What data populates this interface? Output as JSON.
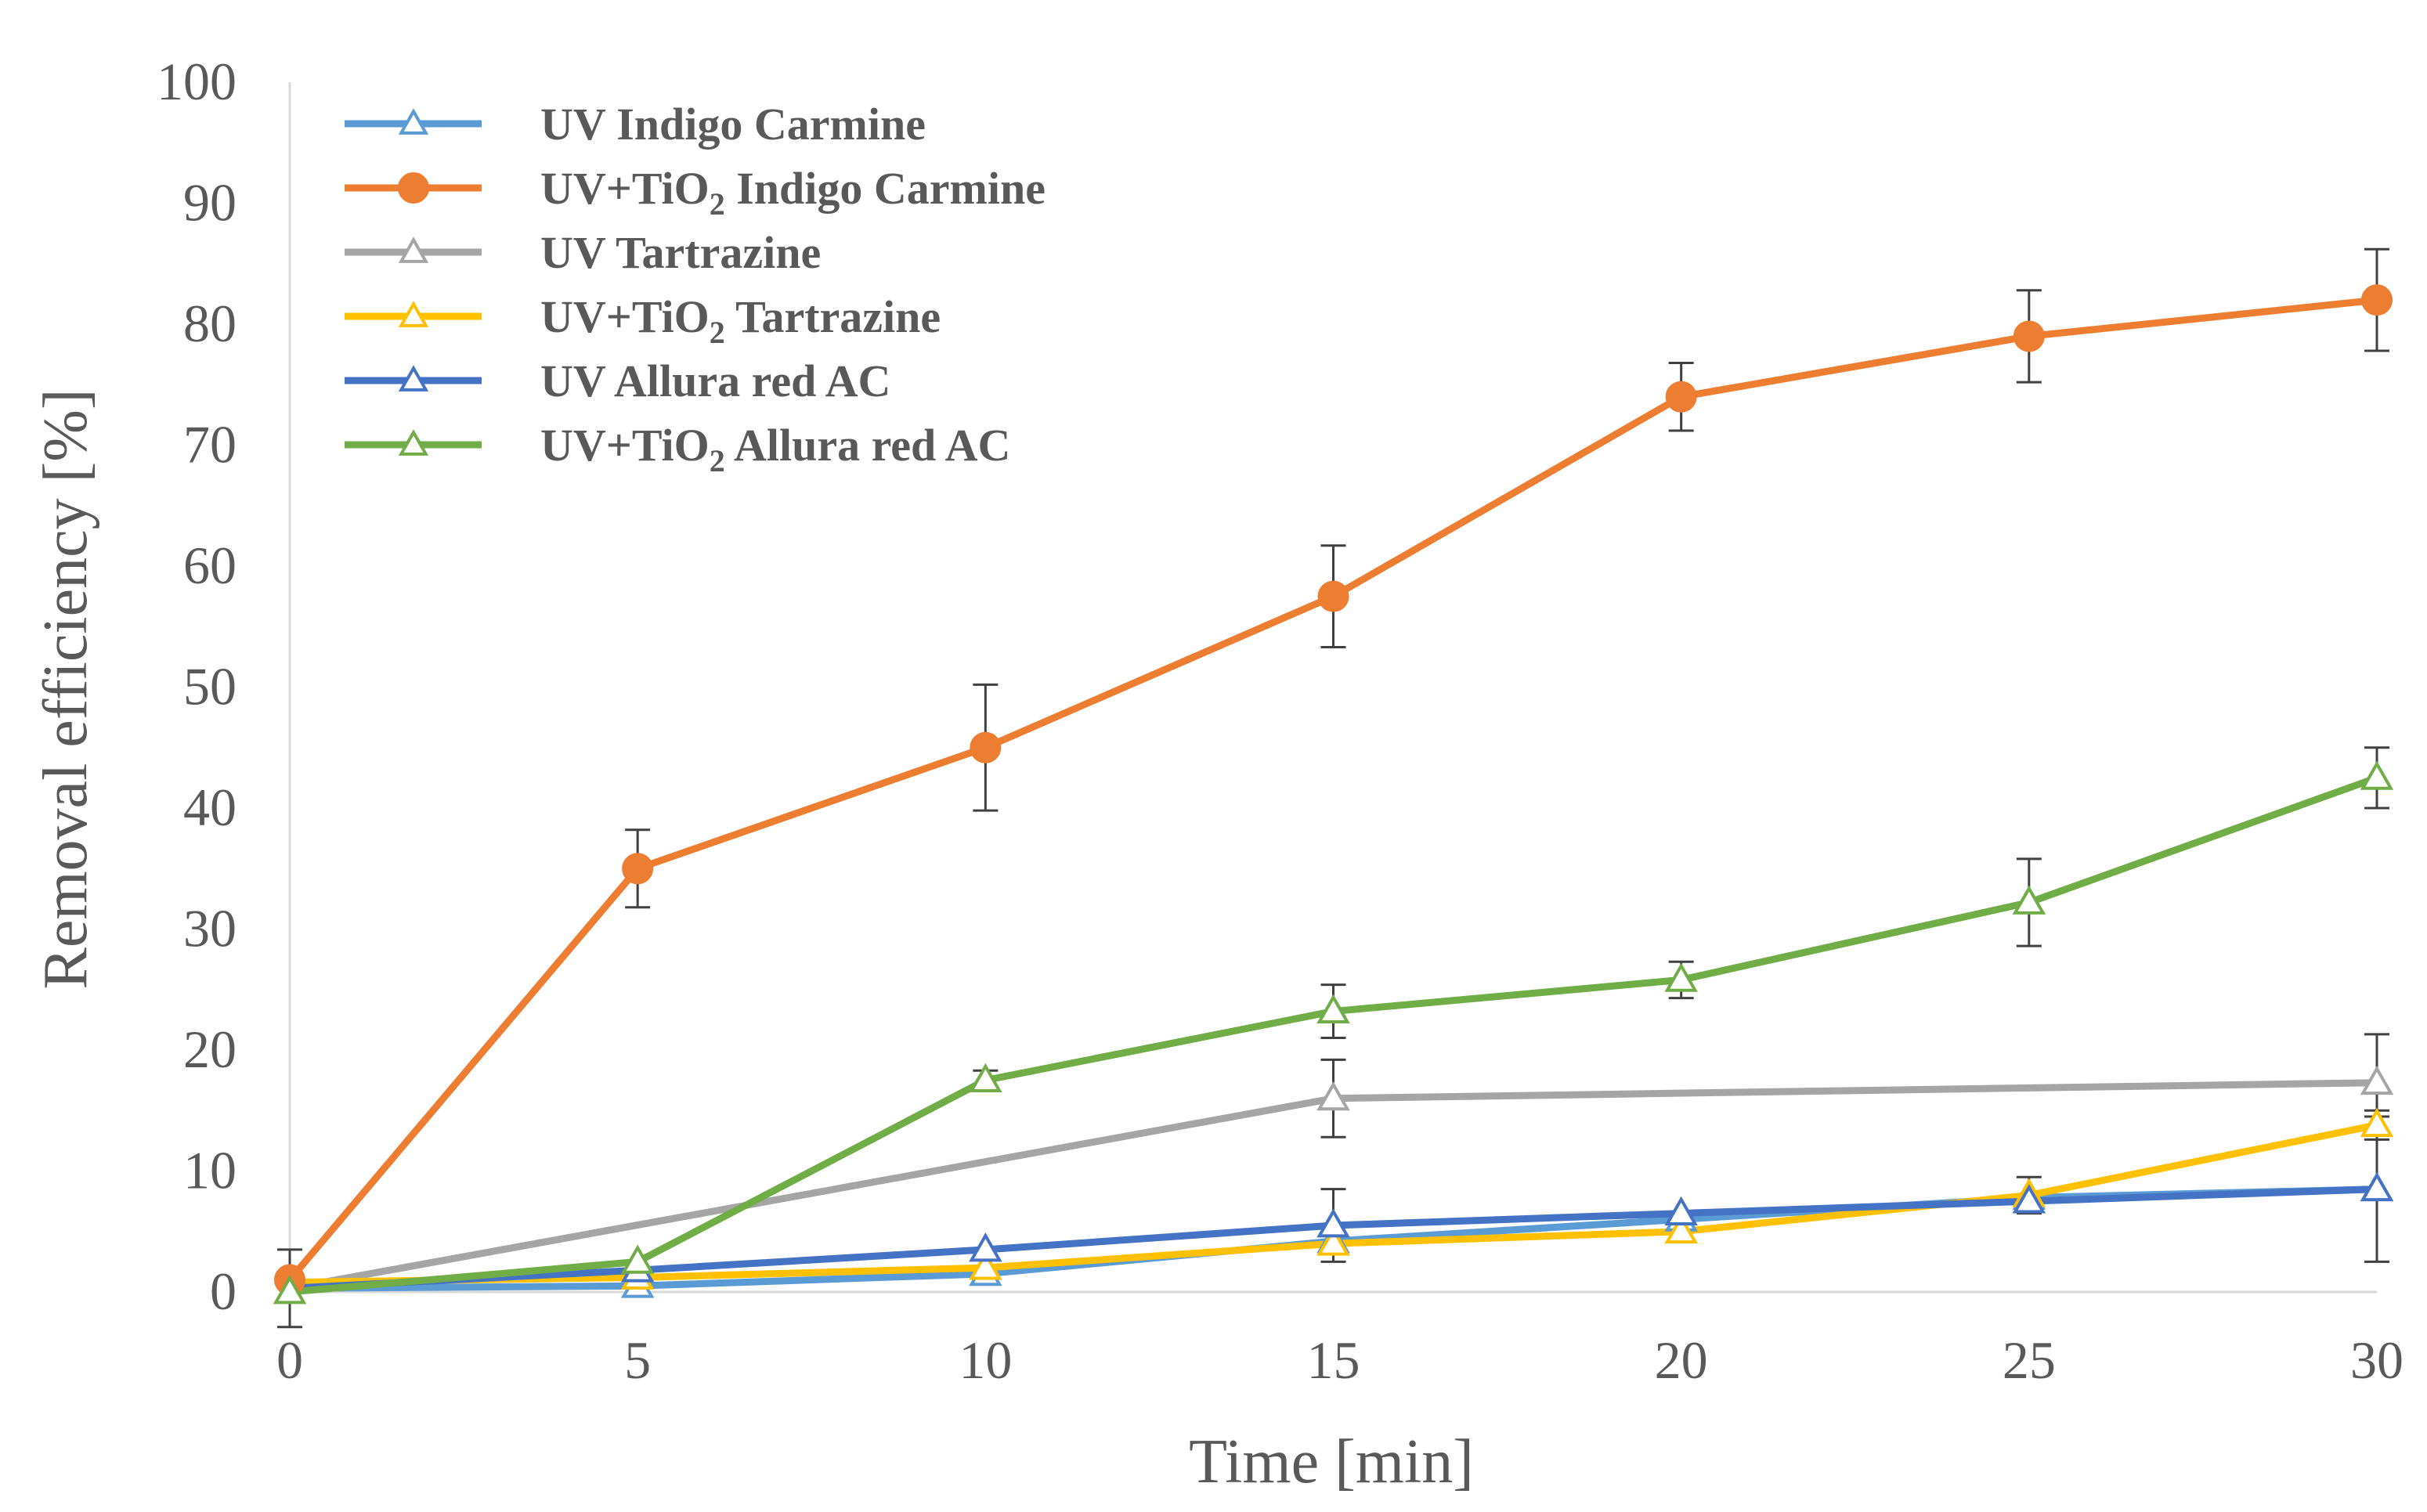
{
  "chart_data": {
    "type": "line",
    "title": "",
    "xlabel": "Time [min]",
    "ylabel": "Removal efficiency [%]",
    "xlim": [
      0,
      30
    ],
    "ylim": [
      0,
      100
    ],
    "x_ticks": [
      0,
      5,
      10,
      15,
      20,
      25,
      30
    ],
    "y_ticks": [
      0,
      10,
      20,
      30,
      40,
      50,
      60,
      70,
      80,
      90,
      100
    ],
    "x_tick_labels": [
      "0",
      "5",
      "10",
      "15",
      "20",
      "25",
      "30"
    ],
    "y_tick_labels": [
      "0",
      "10",
      "20",
      "30",
      "40",
      "50",
      "60",
      "70",
      "80",
      "90",
      "100"
    ],
    "grid": false,
    "legend_position": "top-left",
    "series": [
      {
        "name": "UV Indigo Carmine",
        "label_main": "UV Indigo Carmine",
        "label_sub": "",
        "label_rest": "",
        "color": "#5B9BD5",
        "marker": "triangle-open",
        "x": [
          0,
          5,
          10,
          15,
          20,
          25,
          30
        ],
        "values": [
          0.3,
          0.5,
          1.5,
          4.2,
          6.0,
          7.8,
          8.5
        ],
        "errors": [
          0,
          0,
          0,
          0,
          0,
          0,
          0
        ]
      },
      {
        "name": "UV+TiO2 Indigo Carmine",
        "label_main": "UV+TiO",
        "label_sub": "2",
        "label_rest": " Indigo Carmine",
        "color": "#ED7D31",
        "marker": "circle-filled",
        "x": [
          0,
          5,
          10,
          15,
          20,
          25,
          30
        ],
        "values": [
          1.0,
          35.0,
          45.0,
          57.5,
          74.0,
          79.0,
          82.0
        ],
        "errors": [
          0,
          3.2,
          5.2,
          4.2,
          2.8,
          3.8,
          4.2
        ]
      },
      {
        "name": "UV Tartrazine",
        "label_main": "UV Tartrazine",
        "label_sub": "",
        "label_rest": "",
        "color": "#A5A5A5",
        "marker": "triangle-open",
        "x": [
          0,
          15,
          30
        ],
        "values": [
          0.3,
          16.0,
          17.3
        ],
        "errors": [
          0,
          3.2,
          4.0
        ]
      },
      {
        "name": "UV+TiO2 Tartrazine",
        "label_main": "UV+TiO",
        "label_sub": "2",
        "label_rest": " Tartrazine",
        "color": "#FFC000",
        "marker": "triangle-open",
        "x": [
          0,
          5,
          10,
          15,
          20,
          25,
          30
        ],
        "values": [
          0.8,
          1.2,
          2.0,
          4.0,
          5.0,
          8.0,
          13.8
        ],
        "errors": [
          0,
          0,
          0,
          0.8,
          0,
          1.5,
          1.2
        ]
      },
      {
        "name": "UV Allura red AC",
        "label_main": "UV Allura red AC",
        "label_sub": "",
        "label_rest": "",
        "color": "#4472C4",
        "marker": "triangle-open",
        "x": [
          0,
          5,
          10,
          15,
          20,
          25,
          30
        ],
        "values": [
          0.3,
          1.8,
          3.5,
          5.5,
          6.5,
          7.5,
          8.5
        ],
        "errors": [
          3.2,
          0,
          0,
          3.0,
          0,
          0,
          6.0
        ]
      },
      {
        "name": "UV+TiO2 Allura red AC",
        "label_main": "UV+TiO",
        "label_sub": "2",
        "label_rest": " Allura red AC",
        "color": "#70AD47",
        "marker": "triangle-open",
        "x": [
          0,
          5,
          10,
          15,
          20,
          25,
          30
        ],
        "values": [
          0.0,
          2.5,
          17.5,
          23.2,
          25.8,
          32.2,
          42.5
        ],
        "errors": [
          0,
          0,
          0.8,
          2.2,
          1.5,
          3.6,
          2.5
        ]
      }
    ]
  }
}
